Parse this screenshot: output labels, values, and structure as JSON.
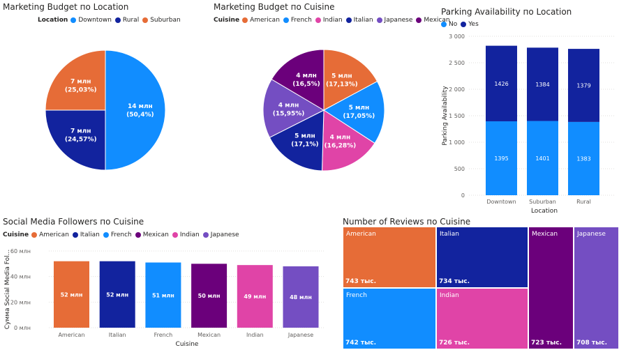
{
  "colors": {
    "blue": "#118DFF",
    "navy": "#12239E",
    "orange": "#E66C37",
    "purple": "#6B007B",
    "pink": "#E044A7",
    "violet": "#744EC2",
    "light_blue": "#1AAAFF"
  },
  "chart_data": [
    {
      "id": "budget_location",
      "type": "pie",
      "title": "Marketing Budget по Location",
      "legend_title": "Location",
      "legend": [
        "Downtown",
        "Rural",
        "Suburban"
      ],
      "slices": [
        {
          "name": "Downtown",
          "value": 14,
          "label": "14 млн",
          "pct": "(50,4%)",
          "color": "#118DFF"
        },
        {
          "name": "Rural",
          "value": 7,
          "label": "7 млн",
          "pct": "(24,57%)",
          "color": "#12239E"
        },
        {
          "name": "Suburban",
          "value": 7,
          "label": "7 млн",
          "pct": "(25,03%)",
          "color": "#E66C37"
        }
      ]
    },
    {
      "id": "budget_cuisine",
      "type": "pie",
      "title": "Marketing Budget по Cuisine",
      "legend_title": "Cuisine",
      "legend": [
        "American",
        "French",
        "Indian",
        "Italian",
        "Japanese",
        "Mexican"
      ],
      "slices": [
        {
          "name": "American",
          "value": 17.13,
          "label": "5 млн",
          "pct": "(17,13%)",
          "color": "#E66C37"
        },
        {
          "name": "French",
          "value": 17.05,
          "label": "5 млн",
          "pct": "(17,05%)",
          "color": "#118DFF"
        },
        {
          "name": "Indian",
          "value": 16.28,
          "label": "4 млн",
          "pct": "(16,28%)",
          "color": "#E044A7"
        },
        {
          "name": "Italian",
          "value": 17.1,
          "label": "5 млн",
          "pct": "(17,1%)",
          "color": "#12239E"
        },
        {
          "name": "Japanese",
          "value": 15.95,
          "label": "4 млн",
          "pct": "(15,95%)",
          "color": "#744EC2"
        },
        {
          "name": "Mexican",
          "value": 16.5,
          "label": "4 млн",
          "pct": "(16,5%)",
          "color": "#6B007B"
        }
      ]
    },
    {
      "id": "parking",
      "type": "bar",
      "stacked": true,
      "title": "Parking Availability по Location",
      "legend_title": "",
      "legend": [
        "No",
        "Yes"
      ],
      "xlabel": "Location",
      "ylabel": "Parking Availability",
      "categories": [
        "Downtown",
        "Suburban",
        "Rural"
      ],
      "series": [
        {
          "name": "No",
          "values": [
            1395,
            1401,
            1383
          ],
          "color": "#118DFF"
        },
        {
          "name": "Yes",
          "values": [
            1426,
            1384,
            1379
          ],
          "color": "#12239E"
        }
      ],
      "ylim": [
        0,
        3000
      ],
      "yticks": [
        "0",
        "500",
        "1 000",
        "1 500",
        "2 000",
        "2 500",
        "3 000"
      ]
    },
    {
      "id": "followers",
      "type": "bar",
      "title": "Social Media Followers по Cuisine",
      "legend_title": "Cuisine",
      "legend": [
        "American",
        "Italian",
        "French",
        "Mexican",
        "Indian",
        "Japanese"
      ],
      "xlabel": "Cuisine",
      "ylabel": "Сумма Social Media Fol...",
      "categories": [
        "American",
        "Italian",
        "French",
        "Mexican",
        "Indian",
        "Japanese"
      ],
      "values": [
        52,
        52,
        51,
        50,
        49,
        48
      ],
      "labels": [
        "52 млн",
        "52 млн",
        "51 млн",
        "50 млн",
        "49 млн",
        "48 млн"
      ],
      "colors": [
        "#E66C37",
        "#12239E",
        "#118DFF",
        "#6B007B",
        "#E044A7",
        "#744EC2"
      ],
      "ylim": [
        0,
        60
      ],
      "yticks": [
        "0 млн",
        "20 млн",
        "40 млн",
        "60 млн"
      ]
    },
    {
      "id": "reviews",
      "type": "treemap",
      "title": "Number of Reviews по Cuisine",
      "items": [
        {
          "name": "American",
          "value": 743,
          "label": "743 тыс.",
          "color": "#E66C37"
        },
        {
          "name": "Italian",
          "value": 734,
          "label": "734 тыс.",
          "color": "#12239E"
        },
        {
          "name": "French",
          "value": 742,
          "label": "742 тыс.",
          "color": "#118DFF"
        },
        {
          "name": "Indian",
          "value": 726,
          "label": "726 тыс.",
          "color": "#E044A7"
        },
        {
          "name": "Mexican",
          "value": 723,
          "label": "723 тыс.",
          "color": "#6B007B"
        },
        {
          "name": "Japanese",
          "value": 708,
          "label": "708 тыс.",
          "color": "#744EC2"
        }
      ]
    }
  ]
}
